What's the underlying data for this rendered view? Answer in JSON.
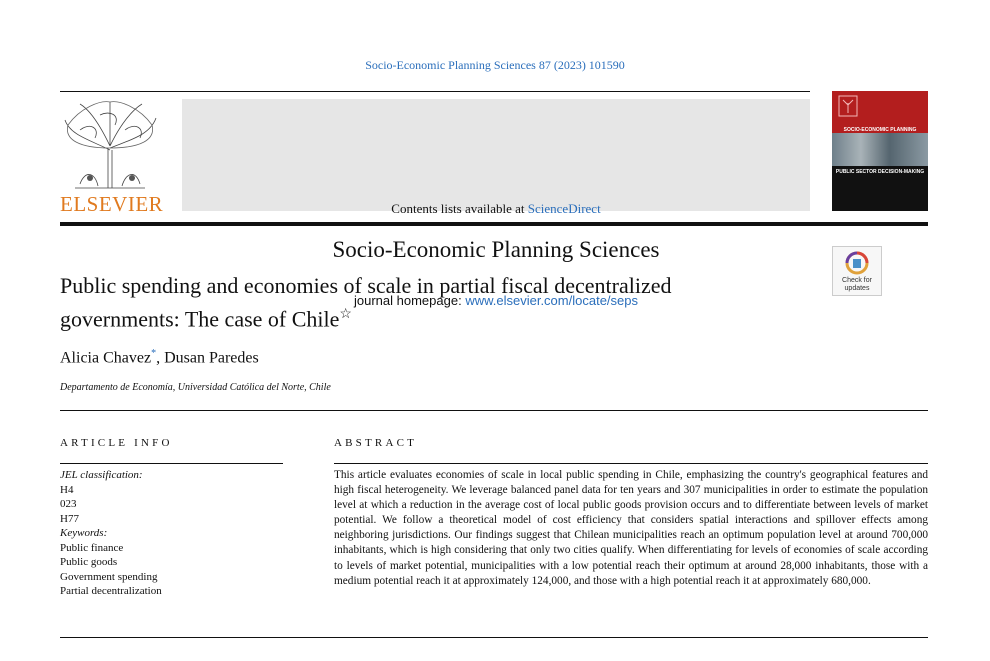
{
  "header": {
    "citation": "Socio-Economic Planning Sciences 87 (2023) 101590",
    "contents_prefix": "Contents lists available at ",
    "contents_link": "ScienceDirect",
    "journal_title": "Socio-Economic Planning Sciences",
    "homepage_prefix": "journal homepage: ",
    "homepage_link": "www.elsevier.com/locate/seps",
    "publisher_logo_text": "ELSEVIER",
    "cover_title": "SOCIO-ECONOMIC PLANNING SCIENCES",
    "cover_subtitle": "PUBLIC SECTOR DECISION-MAKING",
    "badge_text_line1": "Check for",
    "badge_text_line2": "updates"
  },
  "article": {
    "title_line1": "Public spending and economies of scale in partial fiscal decentralized",
    "title_line2": "governments: The case of Chile",
    "title_mark": "☆",
    "author1": "Alicia Chavez",
    "author1_mark": "*",
    "author_sep": ", ",
    "author2": "Dusan Paredes",
    "affiliation": "Departamento de Economía, Universidad Católica del Norte, Chile"
  },
  "article_info": {
    "heading": "ARTICLE INFO",
    "jel_label": "JEL classification:",
    "jel_codes": [
      "H4",
      "023",
      "H77"
    ],
    "keywords_label": "Keywords:",
    "keywords": [
      "Public finance",
      "Public goods",
      "Government spending",
      "Partial decentralization"
    ]
  },
  "abstract": {
    "heading": "ABSTRACT",
    "text": "This article evaluates economies of scale in local public spending in Chile, emphasizing the country's geographical features and high fiscal heterogeneity. We leverage balanced panel data for ten years and 307 municipalities in order to estimate the population level at which a reduction in the average cost of local public goods provision occurs and to differentiate between levels of market potential. We follow a theoretical model of cost efficiency that considers spatial interactions and spillover effects among neighboring jurisdictions. Our findings suggest that Chilean municipalities reach an optimum population level at around 700,000 inhabitants, which is high considering that only two cities qualify. When differentiating for levels of economies of scale according to levels of market potential, municipalities with a low potential reach their optimum at around 28,000 inhabitants, those with a medium potential reach it at approximately 124,000, and those with a high potential reach it at approximately 680,000."
  },
  "colors": {
    "link": "#2a6ebb",
    "elsevier_orange": "#e07a1f",
    "cover_red": "#b31e1e",
    "header_grey": "#e6e6e6"
  }
}
